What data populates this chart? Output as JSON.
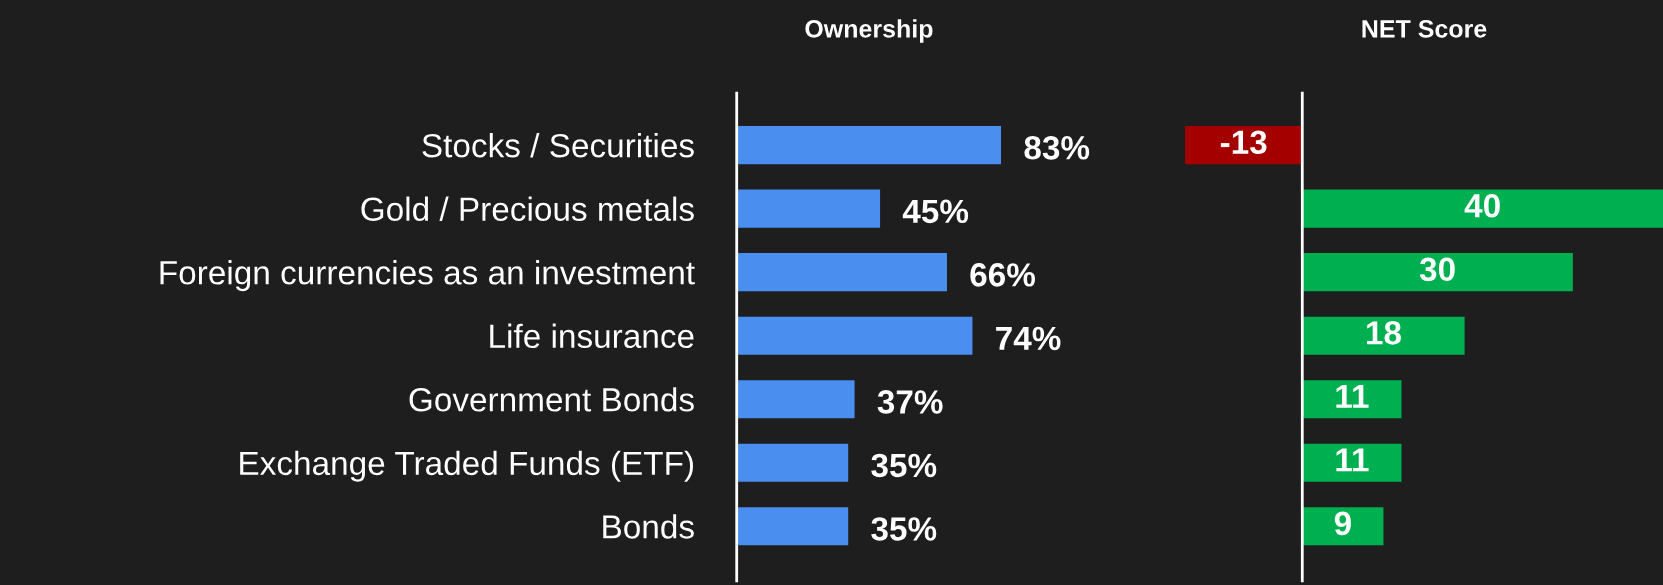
{
  "chart_data": [
    {
      "type": "bar",
      "orientation": "horizontal",
      "title": "Ownership",
      "categories": [
        "Stocks / Securities",
        "Gold / Precious metals",
        "Foreign currencies as an investment",
        "Life insurance",
        "Government Bonds",
        "Exchange Traded Funds (ETF)",
        "Bonds"
      ],
      "values": [
        83,
        45,
        66,
        74,
        37,
        35,
        35
      ],
      "value_labels": [
        "83%",
        "45%",
        "66%",
        "74%",
        "37%",
        "35%",
        "35%"
      ],
      "colors": [
        "#4a8ef0",
        "#4a8ef0",
        "#4a8ef0",
        "#4a8ef0",
        "#4a8ef0",
        "#4a8ef0",
        "#4a8ef0"
      ],
      "tick_labels": "y",
      "grid": false
    },
    {
      "type": "bar",
      "orientation": "horizontal",
      "title": "NET Score",
      "categories": [
        null,
        null,
        null,
        null,
        null,
        null,
        null
      ],
      "values": [
        -13,
        40,
        30,
        18,
        11,
        11,
        9
      ],
      "colors": [
        "#a50000",
        "#00b050",
        "#00b050",
        "#00b050",
        "#00b050",
        "#00b050",
        "#00b050"
      ],
      "data_labels": true,
      "tick_labels": false,
      "grid": false
    }
  ]
}
